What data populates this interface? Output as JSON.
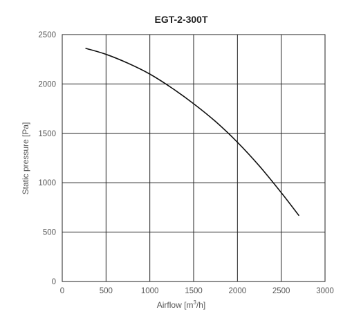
{
  "chart_data": {
    "type": "line",
    "title": "EGT-2-300T",
    "xlabel_base": "Airflow [m",
    "xlabel_sup": "3",
    "xlabel_tail": "/h]",
    "ylabel": "Static pressure [Pa]",
    "xlim": [
      0,
      3000
    ],
    "ylim": [
      0,
      2500
    ],
    "xticks": [
      0,
      500,
      1000,
      1500,
      2000,
      2500,
      3000
    ],
    "yticks": [
      0,
      500,
      1000,
      1500,
      2000,
      2500
    ],
    "grid": true,
    "series": [
      {
        "color": "#111111",
        "x": [
          270,
          500,
          750,
          1000,
          1250,
          1500,
          1750,
          2000,
          2250,
          2500,
          2700
        ],
        "y": [
          2360,
          2300,
          2210,
          2100,
          1960,
          1800,
          1620,
          1410,
          1170,
          900,
          670
        ]
      }
    ]
  }
}
